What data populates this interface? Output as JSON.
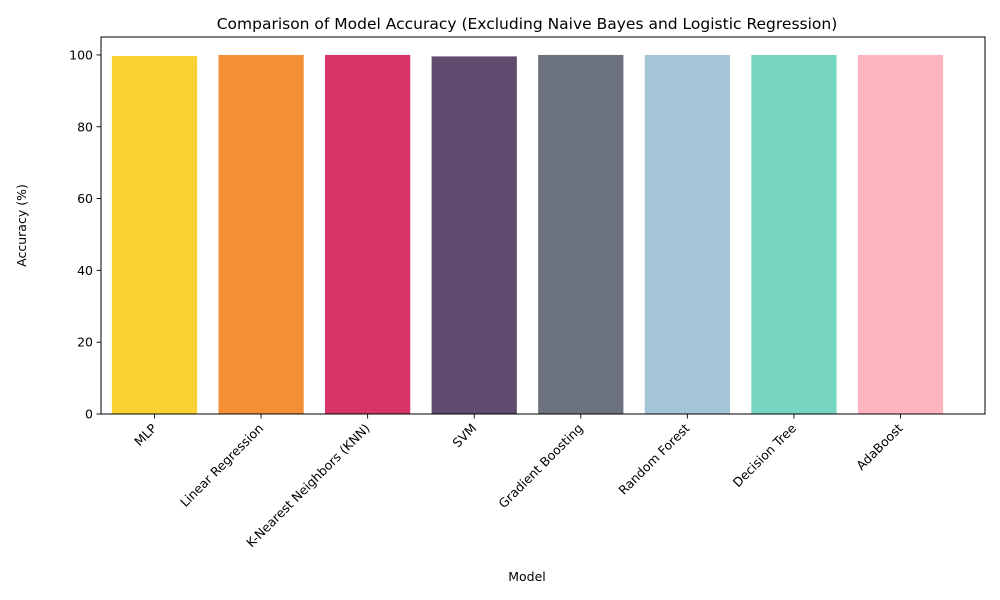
{
  "chart_data": {
    "type": "bar",
    "title": "Comparison of Model Accuracy (Excluding Naive Bayes and Logistic Regression)",
    "xlabel": "Model",
    "ylabel": "Accuracy (%)",
    "ylim": [
      0,
      105
    ],
    "yticks": [
      0,
      20,
      40,
      60,
      80,
      100
    ],
    "grid": false,
    "categories": [
      "MLP",
      "Linear Regression",
      "K-Nearest Neighbors (KNN)",
      "SVM",
      "Gradient Boosting",
      "Random Forest",
      "Decision Tree",
      "AdaBoost"
    ],
    "values": [
      99.7,
      100,
      100,
      99.6,
      100,
      100,
      100,
      100
    ],
    "colors": [
      "#f9d232",
      "#f48f36",
      "#d93467",
      "#604c6e",
      "#6c737e",
      "#a4c6d6",
      "#77d6c2",
      "#ffb5c0"
    ]
  }
}
